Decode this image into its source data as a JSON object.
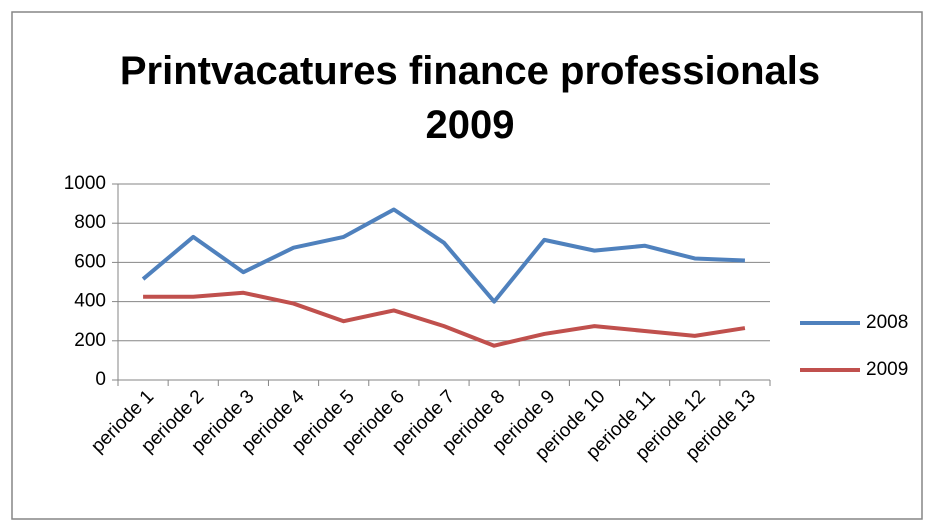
{
  "chart_data": {
    "type": "line",
    "title": "Printvacatures finance professionals 2009",
    "categories": [
      "periode 1",
      "periode 2",
      "periode 3",
      "periode 4",
      "periode 5",
      "periode 6",
      "periode 7",
      "periode 8",
      "periode 9",
      "periode 10",
      "periode 11",
      "periode 12",
      "periode 13"
    ],
    "series": [
      {
        "name": "2008",
        "color": "#4f81bd",
        "values": [
          515,
          730,
          550,
          675,
          730,
          870,
          700,
          400,
          715,
          660,
          685,
          620,
          610
        ]
      },
      {
        "name": "2009",
        "color": "#c0504d",
        "values": [
          425,
          425,
          445,
          390,
          300,
          355,
          275,
          175,
          235,
          275,
          250,
          225,
          265
        ]
      }
    ],
    "ylim": [
      0,
      1000
    ],
    "yticks": [
      0,
      200,
      400,
      600,
      800,
      1000
    ],
    "grid": true,
    "legend": "right"
  }
}
